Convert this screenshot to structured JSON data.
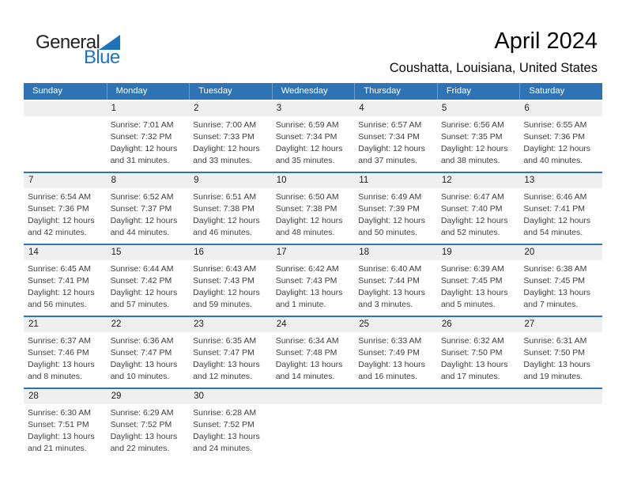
{
  "colors": {
    "header_bg": "#2E74B5",
    "row_line": "#2E74B5",
    "strip_bg": "#EFEFEF",
    "logo_blue": "#1C75BC",
    "header_text": "#FFFFFF",
    "number_text": "#222222",
    "body_text": "#3D3D3D",
    "title_text": "#0A0A0A"
  },
  "logo": {
    "primary": "General",
    "secondary": "Blue",
    "mark": "blue-triangle"
  },
  "header": {
    "title": "April 2024",
    "subtitle": "Coushatta, Louisiana, United States"
  },
  "calendar": {
    "weekdays": [
      "Sunday",
      "Monday",
      "Tuesday",
      "Wednesday",
      "Thursday",
      "Friday",
      "Saturday"
    ],
    "weeks": [
      [
        null,
        {
          "day": "1",
          "lines": [
            "Sunrise: 7:01 AM",
            "Sunset: 7:32 PM",
            "Daylight: 12 hours",
            "and 31 minutes."
          ]
        },
        {
          "day": "2",
          "lines": [
            "Sunrise: 7:00 AM",
            "Sunset: 7:33 PM",
            "Daylight: 12 hours",
            "and 33 minutes."
          ]
        },
        {
          "day": "3",
          "lines": [
            "Sunrise: 6:59 AM",
            "Sunset: 7:34 PM",
            "Daylight: 12 hours",
            "and 35 minutes."
          ]
        },
        {
          "day": "4",
          "lines": [
            "Sunrise: 6:57 AM",
            "Sunset: 7:34 PM",
            "Daylight: 12 hours",
            "and 37 minutes."
          ]
        },
        {
          "day": "5",
          "lines": [
            "Sunrise: 6:56 AM",
            "Sunset: 7:35 PM",
            "Daylight: 12 hours",
            "and 38 minutes."
          ]
        },
        {
          "day": "6",
          "lines": [
            "Sunrise: 6:55 AM",
            "Sunset: 7:36 PM",
            "Daylight: 12 hours",
            "and 40 minutes."
          ]
        }
      ],
      [
        {
          "day": "7",
          "lines": [
            "Sunrise: 6:54 AM",
            "Sunset: 7:36 PM",
            "Daylight: 12 hours",
            "and 42 minutes."
          ]
        },
        {
          "day": "8",
          "lines": [
            "Sunrise: 6:52 AM",
            "Sunset: 7:37 PM",
            "Daylight: 12 hours",
            "and 44 minutes."
          ]
        },
        {
          "day": "9",
          "lines": [
            "Sunrise: 6:51 AM",
            "Sunset: 7:38 PM",
            "Daylight: 12 hours",
            "and 46 minutes."
          ]
        },
        {
          "day": "10",
          "lines": [
            "Sunrise: 6:50 AM",
            "Sunset: 7:38 PM",
            "Daylight: 12 hours",
            "and 48 minutes."
          ]
        },
        {
          "day": "11",
          "lines": [
            "Sunrise: 6:49 AM",
            "Sunset: 7:39 PM",
            "Daylight: 12 hours",
            "and 50 minutes."
          ]
        },
        {
          "day": "12",
          "lines": [
            "Sunrise: 6:47 AM",
            "Sunset: 7:40 PM",
            "Daylight: 12 hours",
            "and 52 minutes."
          ]
        },
        {
          "day": "13",
          "lines": [
            "Sunrise: 6:46 AM",
            "Sunset: 7:41 PM",
            "Daylight: 12 hours",
            "and 54 minutes."
          ]
        }
      ],
      [
        {
          "day": "14",
          "lines": [
            "Sunrise: 6:45 AM",
            "Sunset: 7:41 PM",
            "Daylight: 12 hours",
            "and 56 minutes."
          ]
        },
        {
          "day": "15",
          "lines": [
            "Sunrise: 6:44 AM",
            "Sunset: 7:42 PM",
            "Daylight: 12 hours",
            "and 57 minutes."
          ]
        },
        {
          "day": "16",
          "lines": [
            "Sunrise: 6:43 AM",
            "Sunset: 7:43 PM",
            "Daylight: 12 hours",
            "and 59 minutes."
          ]
        },
        {
          "day": "17",
          "lines": [
            "Sunrise: 6:42 AM",
            "Sunset: 7:43 PM",
            "Daylight: 13 hours",
            "and 1 minute."
          ]
        },
        {
          "day": "18",
          "lines": [
            "Sunrise: 6:40 AM",
            "Sunset: 7:44 PM",
            "Daylight: 13 hours",
            "and 3 minutes."
          ]
        },
        {
          "day": "19",
          "lines": [
            "Sunrise: 6:39 AM",
            "Sunset: 7:45 PM",
            "Daylight: 13 hours",
            "and 5 minutes."
          ]
        },
        {
          "day": "20",
          "lines": [
            "Sunrise: 6:38 AM",
            "Sunset: 7:45 PM",
            "Daylight: 13 hours",
            "and 7 minutes."
          ]
        }
      ],
      [
        {
          "day": "21",
          "lines": [
            "Sunrise: 6:37 AM",
            "Sunset: 7:46 PM",
            "Daylight: 13 hours",
            "and 8 minutes."
          ]
        },
        {
          "day": "22",
          "lines": [
            "Sunrise: 6:36 AM",
            "Sunset: 7:47 PM",
            "Daylight: 13 hours",
            "and 10 minutes."
          ]
        },
        {
          "day": "23",
          "lines": [
            "Sunrise: 6:35 AM",
            "Sunset: 7:47 PM",
            "Daylight: 13 hours",
            "and 12 minutes."
          ]
        },
        {
          "day": "24",
          "lines": [
            "Sunrise: 6:34 AM",
            "Sunset: 7:48 PM",
            "Daylight: 13 hours",
            "and 14 minutes."
          ]
        },
        {
          "day": "25",
          "lines": [
            "Sunrise: 6:33 AM",
            "Sunset: 7:49 PM",
            "Daylight: 13 hours",
            "and 16 minutes."
          ]
        },
        {
          "day": "26",
          "lines": [
            "Sunrise: 6:32 AM",
            "Sunset: 7:50 PM",
            "Daylight: 13 hours",
            "and 17 minutes."
          ]
        },
        {
          "day": "27",
          "lines": [
            "Sunrise: 6:31 AM",
            "Sunset: 7:50 PM",
            "Daylight: 13 hours",
            "and 19 minutes."
          ]
        }
      ],
      [
        {
          "day": "28",
          "lines": [
            "Sunrise: 6:30 AM",
            "Sunset: 7:51 PM",
            "Daylight: 13 hours",
            "and 21 minutes."
          ]
        },
        {
          "day": "29",
          "lines": [
            "Sunrise: 6:29 AM",
            "Sunset: 7:52 PM",
            "Daylight: 13 hours",
            "and 22 minutes."
          ]
        },
        {
          "day": "30",
          "lines": [
            "Sunrise: 6:28 AM",
            "Sunset: 7:52 PM",
            "Daylight: 13 hours",
            "and 24 minutes."
          ]
        },
        null,
        null,
        null,
        null
      ]
    ]
  }
}
